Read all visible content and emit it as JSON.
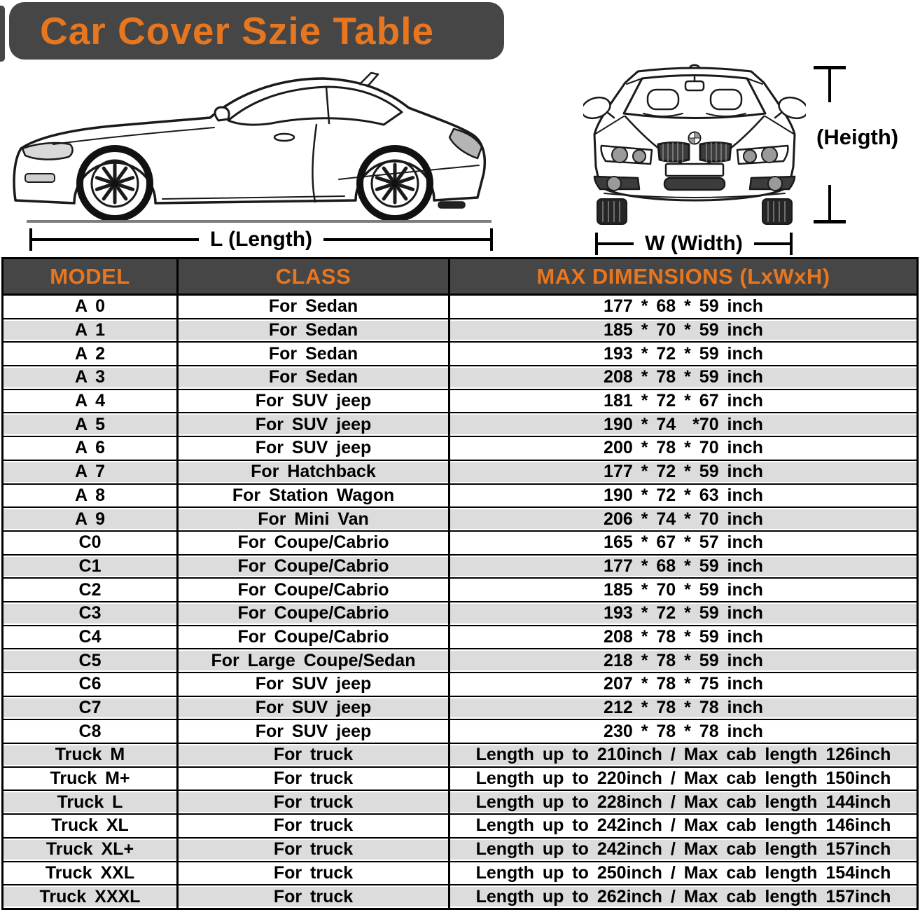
{
  "title": "Car Cover Szie Table",
  "diagram": {
    "length_label": "L (Length)",
    "width_label": "W (Width)",
    "height_label": "(Heigth)"
  },
  "colors": {
    "banner_bg": "#464646",
    "accent_orange": "#e8761e",
    "row_alt_gray": "#dcdcdc",
    "ground_gray": "#7d7d7d"
  },
  "chart_data": {
    "type": "table",
    "title": "Car Cover Szie Table",
    "columns": [
      "MODEL",
      "CLASS",
      "MAX DIMENSIONS (LxWxH)"
    ],
    "rows": [
      [
        "A 0",
        "For Sedan",
        "177 * 68 * 59 inch"
      ],
      [
        "A 1",
        "For Sedan",
        "185 * 70 * 59 inch"
      ],
      [
        "A 2",
        "For Sedan",
        "193 * 72 * 59 inch"
      ],
      [
        "A 3",
        "For Sedan",
        "208 * 78 * 59 inch"
      ],
      [
        "A 4",
        "For SUV jeep",
        "181 * 72 * 67 inch"
      ],
      [
        "A 5",
        "For SUV jeep",
        "190 * 74  *70 inch"
      ],
      [
        "A 6",
        "For SUV jeep",
        "200 * 78 * 70 inch"
      ],
      [
        "A 7",
        "For Hatchback",
        "177 * 72 * 59 inch"
      ],
      [
        "A 8",
        "For Station Wagon",
        "190 * 72 * 63 inch"
      ],
      [
        "A 9",
        "For Mini Van",
        "206 * 74 * 70 inch"
      ],
      [
        "C0",
        "For Coupe/Cabrio",
        "165 * 67 * 57 inch"
      ],
      [
        "C1",
        "For Coupe/Cabrio",
        "177 * 68 * 59 inch"
      ],
      [
        "C2",
        "For Coupe/Cabrio",
        "185 * 70 * 59 inch"
      ],
      [
        "C3",
        "For Coupe/Cabrio",
        "193 * 72 * 59 inch"
      ],
      [
        "C4",
        "For Coupe/Cabrio",
        "208 * 78 * 59 inch"
      ],
      [
        "C5",
        "For Large Coupe/Sedan",
        "218 * 78 * 59 inch"
      ],
      [
        "C6",
        "For SUV jeep",
        "207 * 78 * 75 inch"
      ],
      [
        "C7",
        "For SUV jeep",
        "212 * 78 * 78 inch"
      ],
      [
        "C8",
        "For SUV jeep",
        "230 * 78 * 78 inch"
      ],
      [
        "Truck M",
        "For truck",
        "Length up to 210inch / Max cab length 126inch"
      ],
      [
        "Truck M+",
        "For truck",
        "Length up to 220inch / Max cab length 150inch"
      ],
      [
        "Truck L",
        "For truck",
        "Length up to 228inch / Max cab length 144inch"
      ],
      [
        "Truck XL",
        "For truck",
        "Length up to 242inch / Max cab length 146inch"
      ],
      [
        "Truck XL+",
        "For truck",
        "Length up to 242inch / Max cab length 157inch"
      ],
      [
        "Truck XXL",
        "For truck",
        "Length up to 250inch / Max cab length 154inch"
      ],
      [
        "Truck XXXL",
        "For truck",
        "Length up to 262inch / Max cab length 157inch"
      ]
    ]
  }
}
